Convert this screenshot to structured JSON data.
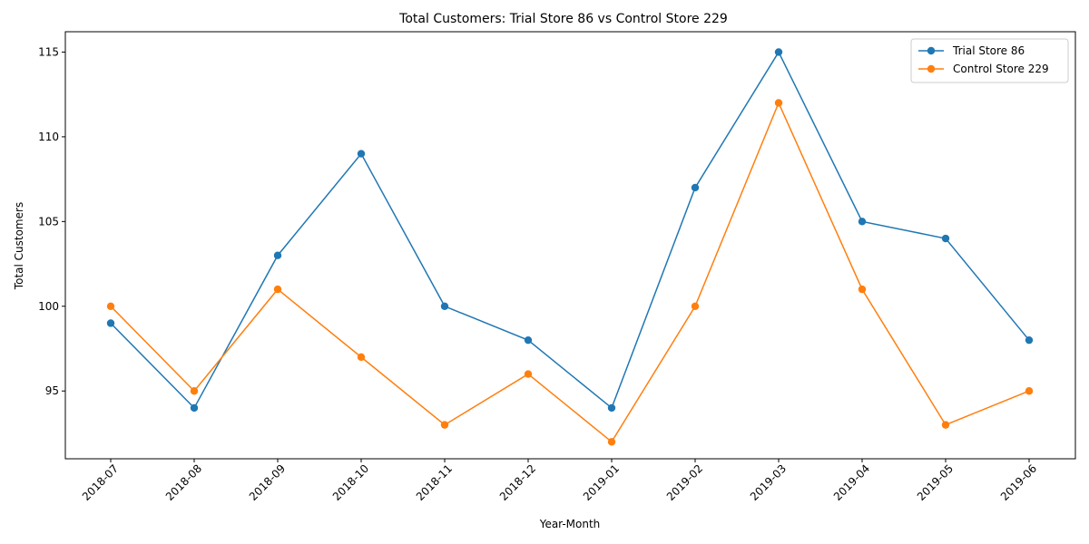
{
  "chart_data": {
    "type": "line",
    "title": "Total Customers: Trial Store 86 vs Control Store 229",
    "xlabel": "Year-Month",
    "ylabel": "Total Customers",
    "categories": [
      "2018-07",
      "2018-08",
      "2018-09",
      "2018-10",
      "2018-11",
      "2018-12",
      "2019-01",
      "2019-02",
      "2019-03",
      "2019-04",
      "2019-05",
      "2019-06"
    ],
    "ylim": [
      91.0,
      116.2
    ],
    "yticks": [
      95,
      100,
      105,
      110,
      115
    ],
    "grid": false,
    "legend_position": "top-right",
    "series": [
      {
        "name": "Trial Store 86",
        "color": "#1f77b4",
        "marker": "circle",
        "values": [
          99,
          94,
          103,
          109,
          100,
          98,
          94,
          107,
          115,
          105,
          104,
          98
        ]
      },
      {
        "name": "Control Store 229",
        "color": "#ff7f0e",
        "marker": "circle",
        "values": [
          100,
          95,
          101,
          97,
          93,
          96,
          92,
          100,
          112,
          101,
          93,
          95
        ]
      }
    ]
  }
}
